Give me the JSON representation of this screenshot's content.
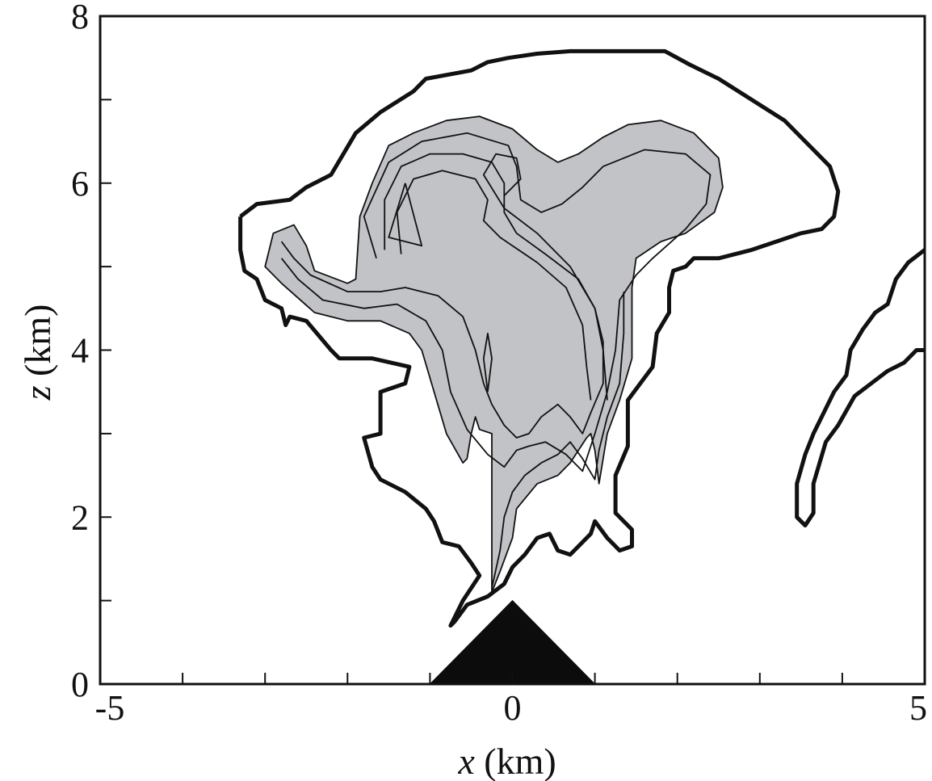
{
  "chart_data": {
    "type": "contour",
    "xlabel": {
      "var": "x",
      "unit": " (km)"
    },
    "ylabel": {
      "var": "z",
      "unit": " (km)"
    },
    "xlim": [
      -5,
      5
    ],
    "ylim": [
      0,
      8
    ],
    "x_tick_labels": [
      {
        "value": -5,
        "text": "-5"
      },
      {
        "value": 0,
        "text": "0"
      },
      {
        "value": 5,
        "text": "5"
      }
    ],
    "y_tick_labels": [
      {
        "value": 0,
        "text": "0"
      },
      {
        "value": 2,
        "text": "2"
      },
      {
        "value": 4,
        "text": "4"
      },
      {
        "value": 6,
        "text": "6"
      },
      {
        "value": 8,
        "text": "8"
      }
    ],
    "x_minor_ticks": [
      -4,
      -3,
      -2,
      -1,
      1,
      2,
      3,
      4
    ],
    "y_minor_ticks": [
      1,
      3,
      5,
      7
    ],
    "mountain": {
      "peak": [
        0,
        1.0
      ],
      "base_left": -1.0,
      "base_right": 1.0,
      "color": "#0c0c0c"
    },
    "fill_color": "#c2c3c7",
    "outer_boundary": [
      [
        -3.3,
        5.6
      ],
      [
        -3.1,
        5.75
      ],
      [
        -2.7,
        5.8
      ],
      [
        -2.5,
        5.95
      ],
      [
        -2.2,
        6.1
      ],
      [
        -1.9,
        6.6
      ],
      [
        -1.6,
        6.85
      ],
      [
        -1.2,
        7.1
      ],
      [
        -1.05,
        7.25
      ],
      [
        -0.5,
        7.35
      ],
      [
        -0.3,
        7.45
      ],
      [
        -0.05,
        7.5
      ],
      [
        0.3,
        7.55
      ],
      [
        0.7,
        7.58
      ],
      [
        1.85,
        7.58
      ],
      [
        2.15,
        7.42
      ],
      [
        2.5,
        7.25
      ],
      [
        2.9,
        7.0
      ],
      [
        3.3,
        6.75
      ],
      [
        3.6,
        6.45
      ],
      [
        3.85,
        6.2
      ],
      [
        3.95,
        5.9
      ],
      [
        3.9,
        5.6
      ],
      [
        3.75,
        5.45
      ],
      [
        3.5,
        5.4
      ],
      [
        3.2,
        5.3
      ],
      [
        2.9,
        5.2
      ],
      [
        2.5,
        5.1
      ],
      [
        2.2,
        5.1
      ],
      [
        2.1,
        5.0
      ],
      [
        1.95,
        4.95
      ],
      [
        1.9,
        4.75
      ],
      [
        1.9,
        4.45
      ],
      [
        1.75,
        4.2
      ],
      [
        1.7,
        3.8
      ],
      [
        1.55,
        3.6
      ],
      [
        1.4,
        3.4
      ],
      [
        1.4,
        2.85
      ],
      [
        1.25,
        2.5
      ],
      [
        1.25,
        2.05
      ],
      [
        1.45,
        1.85
      ],
      [
        1.45,
        1.65
      ],
      [
        1.3,
        1.6
      ],
      [
        1.15,
        1.75
      ],
      [
        1.0,
        1.95
      ],
      [
        0.95,
        1.8
      ],
      [
        0.85,
        1.7
      ],
      [
        0.7,
        1.55
      ],
      [
        0.55,
        1.6
      ],
      [
        0.45,
        1.8
      ],
      [
        0.3,
        1.75
      ],
      [
        0.15,
        1.55
      ],
      [
        0.0,
        1.4
      ],
      [
        -0.1,
        1.2
      ],
      [
        -0.3,
        1.05
      ],
      [
        -0.55,
        0.95
      ],
      [
        -0.7,
        0.75
      ],
      [
        -0.75,
        0.7
      ],
      [
        -0.6,
        1.0
      ],
      [
        -0.4,
        1.3
      ],
      [
        -0.5,
        1.45
      ],
      [
        -0.65,
        1.65
      ],
      [
        -0.85,
        1.7
      ],
      [
        -0.95,
        1.95
      ],
      [
        -1.05,
        2.1
      ],
      [
        -1.3,
        2.3
      ],
      [
        -1.6,
        2.45
      ],
      [
        -1.7,
        2.6
      ],
      [
        -1.8,
        2.95
      ],
      [
        -1.6,
        3.0
      ],
      [
        -1.6,
        3.5
      ],
      [
        -1.3,
        3.6
      ],
      [
        -1.25,
        3.8
      ],
      [
        -1.7,
        3.9
      ],
      [
        -2.1,
        3.9
      ],
      [
        -2.2,
        4.0
      ],
      [
        -2.5,
        4.35
      ],
      [
        -2.7,
        4.4
      ],
      [
        -2.75,
        4.3
      ],
      [
        -2.8,
        4.5
      ],
      [
        -3.0,
        4.6
      ],
      [
        -3.1,
        4.85
      ],
      [
        -3.25,
        4.95
      ],
      [
        -3.3,
        5.2
      ],
      [
        -3.3,
        5.6
      ]
    ],
    "right_boundary_upper": [
      [
        5.0,
        5.2
      ],
      [
        4.8,
        5.05
      ],
      [
        4.65,
        4.85
      ],
      [
        4.55,
        4.55
      ],
      [
        4.4,
        4.45
      ],
      [
        4.25,
        4.25
      ],
      [
        4.1,
        4.0
      ],
      [
        4.05,
        3.7
      ],
      [
        3.9,
        3.5
      ],
      [
        3.8,
        3.3
      ],
      [
        3.65,
        3.0
      ],
      [
        3.55,
        2.75
      ],
      [
        3.45,
        2.4
      ],
      [
        3.45,
        2.0
      ],
      [
        3.55,
        1.9
      ],
      [
        3.65,
        2.05
      ],
      [
        3.65,
        2.4
      ],
      [
        3.8,
        2.9
      ],
      [
        3.95,
        3.1
      ],
      [
        4.15,
        3.45
      ],
      [
        4.35,
        3.6
      ],
      [
        4.55,
        3.75
      ],
      [
        4.75,
        3.85
      ],
      [
        4.9,
        4.0
      ],
      [
        5.0,
        4.0
      ]
    ],
    "gray_region": [
      [
        -2.9,
        5.4
      ],
      [
        -2.65,
        5.5
      ],
      [
        -2.5,
        5.25
      ],
      [
        -2.4,
        4.95
      ],
      [
        -2.0,
        4.8
      ],
      [
        -1.9,
        4.85
      ],
      [
        -1.85,
        5.6
      ],
      [
        -1.7,
        6.0
      ],
      [
        -1.5,
        6.45
      ],
      [
        -1.2,
        6.6
      ],
      [
        -0.8,
        6.75
      ],
      [
        -0.4,
        6.8
      ],
      [
        0.0,
        6.65
      ],
      [
        0.3,
        6.4
      ],
      [
        0.55,
        6.25
      ],
      [
        0.8,
        6.35
      ],
      [
        1.1,
        6.55
      ],
      [
        1.4,
        6.7
      ],
      [
        1.8,
        6.75
      ],
      [
        2.2,
        6.6
      ],
      [
        2.5,
        6.3
      ],
      [
        2.55,
        5.95
      ],
      [
        2.45,
        5.65
      ],
      [
        2.1,
        5.4
      ],
      [
        1.8,
        5.3
      ],
      [
        1.5,
        5.1
      ],
      [
        1.45,
        4.75
      ],
      [
        1.45,
        4.2
      ],
      [
        1.45,
        3.9
      ],
      [
        1.3,
        3.4
      ],
      [
        1.15,
        3.0
      ],
      [
        1.05,
        2.4
      ],
      [
        1.0,
        2.8
      ],
      [
        0.95,
        3.0
      ],
      [
        0.9,
        2.95
      ],
      [
        0.7,
        2.65
      ],
      [
        0.55,
        2.5
      ],
      [
        0.3,
        2.4
      ],
      [
        0.05,
        2.1
      ],
      [
        0.0,
        1.75
      ],
      [
        -0.15,
        1.35
      ],
      [
        -0.25,
        1.1
      ],
      [
        -0.25,
        2.0
      ],
      [
        -0.25,
        3.0
      ],
      [
        -0.4,
        3.05
      ],
      [
        -0.45,
        3.2
      ],
      [
        -0.5,
        3.0
      ],
      [
        -0.55,
        2.7
      ],
      [
        -0.6,
        2.65
      ],
      [
        -0.8,
        3.0
      ],
      [
        -0.95,
        3.5
      ],
      [
        -1.1,
        4.0
      ],
      [
        -1.25,
        4.2
      ],
      [
        -1.6,
        4.35
      ],
      [
        -2.0,
        4.35
      ],
      [
        -2.4,
        4.45
      ],
      [
        -2.8,
        4.8
      ],
      [
        -3.0,
        5.0
      ],
      [
        -2.9,
        5.4
      ]
    ],
    "contour_lines": [
      [
        [
          -2.8,
          5.3
        ],
        [
          -2.65,
          5.1
        ],
        [
          -2.45,
          4.9
        ],
        [
          -2.0,
          4.7
        ],
        [
          -1.6,
          4.7
        ],
        [
          -1.3,
          4.75
        ],
        [
          -0.9,
          4.65
        ],
        [
          -0.6,
          4.4
        ],
        [
          -0.45,
          4.0
        ],
        [
          -0.35,
          3.6
        ],
        [
          -0.25,
          3.35
        ],
        [
          -0.1,
          3.1
        ],
        [
          0.05,
          2.95
        ],
        [
          0.2,
          3.0
        ],
        [
          0.35,
          3.2
        ],
        [
          0.55,
          3.35
        ],
        [
          0.7,
          3.2
        ],
        [
          0.85,
          3.0
        ],
        [
          0.95,
          3.25
        ],
        [
          1.1,
          3.6
        ],
        [
          1.1,
          4.1
        ],
        [
          1.0,
          4.5
        ],
        [
          0.7,
          5.0
        ],
        [
          0.3,
          5.4
        ],
        [
          -0.1,
          5.7
        ],
        [
          -0.35,
          6.1
        ],
        [
          -0.2,
          6.35
        ],
        [
          0.05,
          6.3
        ],
        [
          0.1,
          6.05
        ],
        [
          -0.1,
          5.85
        ]
      ],
      [
        [
          -2.8,
          5.1
        ],
        [
          -2.6,
          4.85
        ],
        [
          -2.3,
          4.6
        ],
        [
          -1.8,
          4.5
        ],
        [
          -1.4,
          4.55
        ],
        [
          -1.05,
          4.35
        ],
        [
          -0.85,
          4.0
        ],
        [
          -0.75,
          3.5
        ],
        [
          -0.55,
          3.05
        ],
        [
          -0.3,
          2.75
        ],
        [
          -0.1,
          2.6
        ],
        [
          0.05,
          2.8
        ],
        [
          0.2,
          2.85
        ],
        [
          0.4,
          2.9
        ],
        [
          0.65,
          2.75
        ],
        [
          0.85,
          2.55
        ],
        [
          1.0,
          3.0
        ],
        [
          1.15,
          3.5
        ],
        [
          1.25,
          4.0
        ],
        [
          1.3,
          4.6
        ],
        [
          1.5,
          4.9
        ],
        [
          1.7,
          5.1
        ],
        [
          2.1,
          5.45
        ],
        [
          2.35,
          5.75
        ],
        [
          2.4,
          6.1
        ],
        [
          2.1,
          6.35
        ],
        [
          1.6,
          6.4
        ],
        [
          1.1,
          6.2
        ],
        [
          0.85,
          5.95
        ],
        [
          0.6,
          5.75
        ],
        [
          0.35,
          5.65
        ],
        [
          0.1,
          5.8
        ],
        [
          0.05,
          6.2
        ],
        [
          -0.05,
          6.45
        ],
        [
          -0.55,
          6.6
        ],
        [
          -1.1,
          6.5
        ],
        [
          -1.5,
          6.25
        ],
        [
          -1.8,
          5.6
        ],
        [
          -1.65,
          5.1
        ]
      ],
      [
        [
          -0.25,
          1.15
        ],
        [
          -0.15,
          1.6
        ],
        [
          -0.1,
          2.0
        ],
        [
          0.0,
          2.3
        ],
        [
          0.15,
          2.5
        ],
        [
          0.35,
          2.65
        ],
        [
          0.55,
          2.75
        ],
        [
          0.7,
          2.9
        ],
        [
          0.85,
          2.7
        ],
        [
          1.0,
          2.45
        ],
        [
          1.05,
          2.8
        ],
        [
          1.15,
          3.2
        ],
        [
          1.3,
          3.6
        ],
        [
          1.35,
          4.2
        ],
        [
          1.35,
          4.7
        ]
      ],
      [
        [
          -1.55,
          5.2
        ],
        [
          -1.55,
          5.8
        ],
        [
          -1.35,
          6.2
        ],
        [
          -1.0,
          6.35
        ],
        [
          -0.6,
          6.35
        ],
        [
          -0.25,
          6.25
        ],
        [
          -0.1,
          6.0
        ],
        [
          -0.1,
          5.65
        ],
        [
          0.05,
          5.4
        ],
        [
          0.4,
          5.15
        ],
        [
          0.8,
          4.85
        ],
        [
          1.0,
          4.5
        ],
        [
          1.1,
          4.0
        ],
        [
          1.15,
          3.4
        ]
      ],
      [
        [
          -1.35,
          5.15
        ],
        [
          -1.4,
          5.65
        ],
        [
          -1.2,
          6.05
        ],
        [
          -0.85,
          6.15
        ],
        [
          -0.45,
          6.05
        ],
        [
          -0.3,
          5.8
        ],
        [
          -0.35,
          5.55
        ],
        [
          -0.15,
          5.35
        ],
        [
          0.3,
          5.05
        ],
        [
          0.65,
          4.75
        ],
        [
          0.85,
          4.3
        ],
        [
          0.9,
          3.8
        ],
        [
          0.95,
          3.4
        ]
      ],
      [
        [
          -1.3,
          6.0
        ],
        [
          -1.5,
          5.35
        ],
        [
          -1.1,
          5.25
        ],
        [
          -1.3,
          6.0
        ]
      ],
      [
        [
          -0.3,
          3.5
        ],
        [
          -0.25,
          3.9
        ],
        [
          -0.3,
          4.2
        ],
        [
          -0.35,
          3.9
        ],
        [
          -0.3,
          3.5
        ]
      ]
    ]
  }
}
